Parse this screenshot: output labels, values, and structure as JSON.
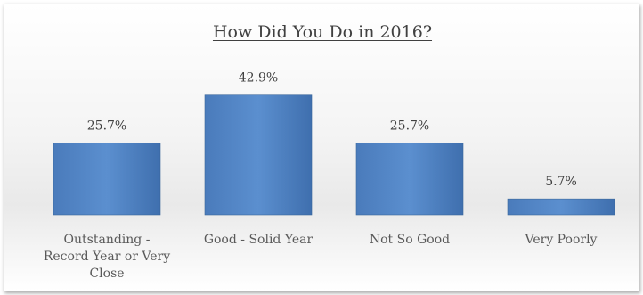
{
  "chart_data": {
    "type": "bar",
    "title": "How Did You Do in 2016?",
    "categories": [
      [
        "Outstanding -",
        "Record Year or Very",
        "Close"
      ],
      [
        "Good - Solid Year"
      ],
      [
        "Not So Good"
      ],
      [
        "Very Poorly"
      ]
    ],
    "values": [
      25.7,
      42.9,
      25.7,
      5.7
    ],
    "value_labels": [
      "25.7%",
      "42.9%",
      "25.7%",
      "5.7%"
    ],
    "xlabel": "",
    "ylabel": "",
    "ylim": [
      0,
      50
    ],
    "grid": false,
    "legend": "none",
    "bar_color": "#4f81bd"
  }
}
